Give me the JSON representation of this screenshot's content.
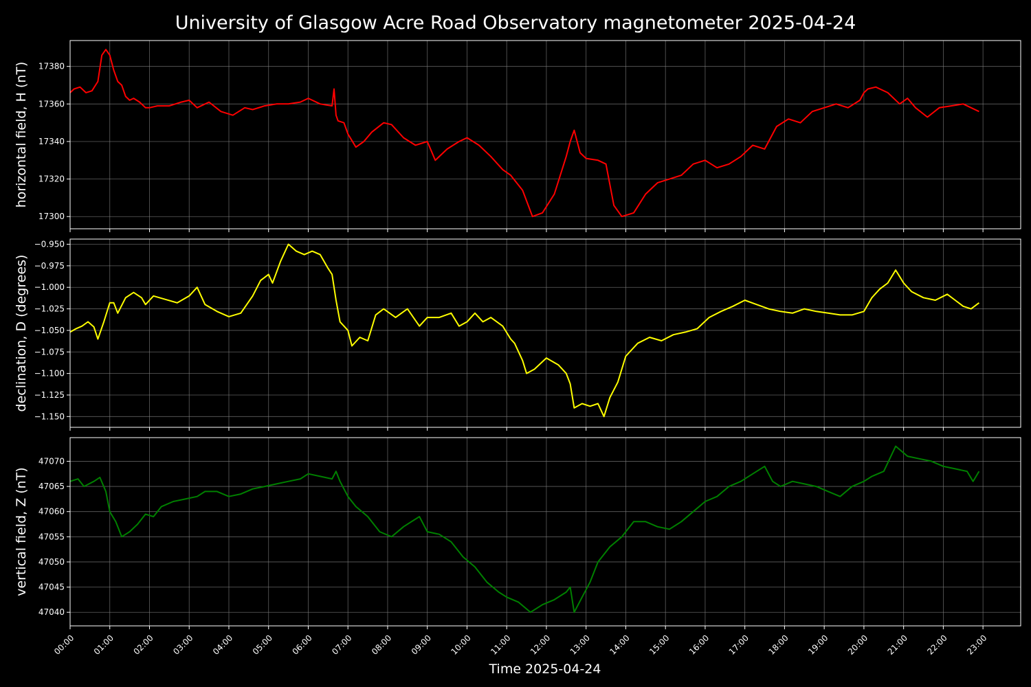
{
  "chart_data": {
    "type": "line",
    "title": "University of Glasgow Acre Road Observatory magnetometer 2025-04-24",
    "xlabel": "Time 2025-04-24",
    "x_tick_labels": [
      "00:00",
      "01:00",
      "02:00",
      "03:00",
      "04:00",
      "05:00",
      "06:00",
      "07:00",
      "08:00",
      "09:00",
      "10:00",
      "11:00",
      "12:00",
      "13:00",
      "14:00",
      "15:00",
      "16:00",
      "17:00",
      "18:00",
      "19:00",
      "20:00",
      "21:00",
      "22:00",
      "23:00"
    ],
    "x_unit": "hours",
    "xlim": [
      0,
      23.95
    ],
    "grid": true,
    "panels": [
      {
        "ylabel": "horizontal field, H (nT)",
        "color": "#ff0000",
        "ylim": [
          17293.5,
          17393.8
        ],
        "yticks": [
          17300,
          17320,
          17340,
          17360,
          17380
        ],
        "ytick_labels": [
          "17300",
          "17320",
          "17340",
          "17360",
          "17380"
        ],
        "x": [
          0,
          0.1,
          0.25,
          0.4,
          0.55,
          0.7,
          0.8,
          0.9,
          1.0,
          1.1,
          1.2,
          1.3,
          1.4,
          1.5,
          1.6,
          1.75,
          1.9,
          2.0,
          2.2,
          2.5,
          2.8,
          3.0,
          3.2,
          3.5,
          3.8,
          4.1,
          4.4,
          4.6,
          4.9,
          5.2,
          5.5,
          5.8,
          6.0,
          6.3,
          6.6,
          6.65,
          6.7,
          6.75,
          6.9,
          7.0,
          7.2,
          7.4,
          7.6,
          7.9,
          8.1,
          8.4,
          8.7,
          9.0,
          9.2,
          9.5,
          9.8,
          10.0,
          10.3,
          10.6,
          10.9,
          11.1,
          11.4,
          11.65,
          11.9,
          12.2,
          12.5,
          12.6,
          12.7,
          12.85,
          13.0,
          13.3,
          13.5,
          13.7,
          13.9,
          14.2,
          14.5,
          14.8,
          15.1,
          15.4,
          15.7,
          16.0,
          16.3,
          16.6,
          16.9,
          17.2,
          17.5,
          17.8,
          18.1,
          18.4,
          18.7,
          19.0,
          19.3,
          19.6,
          19.9,
          20.0,
          20.1,
          20.3,
          20.6,
          20.9,
          21.1,
          21.3,
          21.6,
          21.9,
          22.2,
          22.5,
          22.7,
          22.9
        ],
        "y": [
          17366,
          17368,
          17369,
          17366,
          17367,
          17372,
          17386,
          17389,
          17386,
          17378,
          17372,
          17370,
          17364,
          17362,
          17363,
          17361,
          17358,
          17358,
          17359,
          17359,
          17361,
          17362,
          17358,
          17361,
          17356,
          17354,
          17358,
          17357,
          17359,
          17360,
          17360,
          17361,
          17363,
          17360,
          17359,
          17368,
          17354,
          17351,
          17350,
          17344,
          17337,
          17340,
          17345,
          17350,
          17349,
          17342,
          17338,
          17340,
          17330,
          17336,
          17340,
          17342,
          17338,
          17332,
          17325,
          17322,
          17314,
          17300,
          17302,
          17312,
          17332,
          17340,
          17346,
          17334,
          17331,
          17330,
          17328,
          17306,
          17300,
          17302,
          17312,
          17318,
          17320,
          17322,
          17328,
          17330,
          17326,
          17328,
          17332,
          17338,
          17336,
          17348,
          17352,
          17350,
          17356,
          17358,
          17360,
          17358,
          17362,
          17366,
          17368,
          17369,
          17366,
          17360,
          17363,
          17358,
          17353,
          17358,
          17359,
          17360,
          17358,
          17356
        ]
      },
      {
        "ylabel": "declination, D (degrees)",
        "color": "#ffff00",
        "ylim": [
          -1.1625,
          -0.944
        ],
        "yticks": [
          -1.15,
          -1.125,
          -1.1,
          -1.075,
          -1.05,
          -1.025,
          -1.0,
          -0.975,
          -0.95
        ],
        "ytick_labels": [
          "−1.150",
          "−1.125",
          "−1.100",
          "−1.075",
          "−1.050",
          "−1.025",
          "−1.000",
          "−0.975",
          "−0.950"
        ],
        "x": [
          0,
          0.15,
          0.3,
          0.45,
          0.6,
          0.7,
          0.85,
          1.0,
          1.1,
          1.2,
          1.4,
          1.6,
          1.8,
          1.9,
          2.1,
          2.4,
          2.7,
          3.0,
          3.2,
          3.4,
          3.7,
          4.0,
          4.3,
          4.6,
          4.8,
          5.0,
          5.1,
          5.3,
          5.5,
          5.7,
          5.9,
          6.1,
          6.3,
          6.5,
          6.6,
          6.7,
          6.8,
          7.0,
          7.1,
          7.3,
          7.5,
          7.7,
          7.9,
          8.2,
          8.5,
          8.8,
          9.0,
          9.3,
          9.6,
          9.8,
          10.0,
          10.2,
          10.4,
          10.6,
          10.9,
          11.1,
          11.2,
          11.4,
          11.5,
          11.7,
          12.0,
          12.3,
          12.5,
          12.6,
          12.7,
          12.9,
          13.1,
          13.3,
          13.45,
          13.6,
          13.8,
          14.0,
          14.3,
          14.6,
          14.9,
          15.2,
          15.5,
          15.8,
          16.1,
          16.4,
          16.7,
          17.0,
          17.3,
          17.6,
          17.9,
          18.2,
          18.5,
          18.8,
          19.1,
          19.4,
          19.7,
          20.0,
          20.2,
          20.4,
          20.6,
          20.8,
          21.0,
          21.2,
          21.5,
          21.8,
          22.1,
          22.3,
          22.5,
          22.7,
          22.9
        ],
        "y": [
          -1.052,
          -1.048,
          -1.045,
          -1.04,
          -1.046,
          -1.06,
          -1.04,
          -1.018,
          -1.018,
          -1.03,
          -1.012,
          -1.006,
          -1.012,
          -1.02,
          -1.01,
          -1.014,
          -1.018,
          -1.01,
          -1.0,
          -1.02,
          -1.028,
          -1.034,
          -1.03,
          -1.01,
          -0.992,
          -0.985,
          -0.995,
          -0.97,
          -0.95,
          -0.958,
          -0.962,
          -0.958,
          -0.962,
          -0.978,
          -0.985,
          -1.015,
          -1.04,
          -1.05,
          -1.068,
          -1.058,
          -1.062,
          -1.032,
          -1.025,
          -1.035,
          -1.025,
          -1.045,
          -1.035,
          -1.035,
          -1.03,
          -1.045,
          -1.04,
          -1.03,
          -1.04,
          -1.035,
          -1.045,
          -1.06,
          -1.065,
          -1.085,
          -1.1,
          -1.095,
          -1.082,
          -1.09,
          -1.1,
          -1.112,
          -1.14,
          -1.135,
          -1.138,
          -1.135,
          -1.15,
          -1.128,
          -1.11,
          -1.08,
          -1.065,
          -1.058,
          -1.062,
          -1.055,
          -1.052,
          -1.048,
          -1.035,
          -1.028,
          -1.022,
          -1.015,
          -1.02,
          -1.025,
          -1.028,
          -1.03,
          -1.025,
          -1.028,
          -1.03,
          -1.032,
          -1.032,
          -1.028,
          -1.012,
          -1.002,
          -0.995,
          -0.98,
          -0.995,
          -1.005,
          -1.012,
          -1.015,
          -1.008,
          -1.015,
          -1.022,
          -1.025,
          -1.018
        ]
      },
      {
        "ylabel": "vertical field, Z (nT)",
        "color": "#008000",
        "ylim": [
          47037.3,
          47074.7
        ],
        "yticks": [
          47040,
          47045,
          47050,
          47055,
          47060,
          47065,
          47070
        ],
        "ytick_labels": [
          "47040",
          "47045",
          "47050",
          "47055",
          "47060",
          "47065",
          "47070"
        ],
        "x": [
          0,
          0.2,
          0.35,
          0.6,
          0.75,
          0.9,
          1.0,
          1.15,
          1.3,
          1.5,
          1.7,
          1.9,
          2.1,
          2.3,
          2.6,
          2.9,
          3.2,
          3.4,
          3.7,
          4.0,
          4.3,
          4.6,
          4.9,
          5.2,
          5.5,
          5.8,
          6.0,
          6.3,
          6.6,
          6.7,
          6.8,
          7.0,
          7.2,
          7.5,
          7.8,
          8.1,
          8.4,
          8.6,
          8.8,
          9.0,
          9.3,
          9.6,
          9.9,
          10.2,
          10.5,
          10.8,
          11.0,
          11.3,
          11.6,
          11.9,
          12.2,
          12.5,
          12.6,
          12.7,
          12.9,
          13.1,
          13.3,
          13.6,
          13.9,
          14.2,
          14.5,
          14.8,
          15.1,
          15.4,
          15.7,
          16.0,
          16.3,
          16.6,
          16.9,
          17.2,
          17.5,
          17.7,
          17.9,
          18.2,
          18.5,
          18.8,
          19.1,
          19.4,
          19.7,
          20.0,
          20.2,
          20.5,
          20.8,
          21.1,
          21.4,
          21.7,
          22.0,
          22.3,
          22.6,
          22.75,
          22.9
        ],
        "y": [
          47066,
          47066.5,
          47065,
          47066,
          47066.8,
          47064,
          47060,
          47058,
          47055,
          47056,
          47057.5,
          47059.5,
          47059,
          47061,
          47062,
          47062.5,
          47063,
          47064,
          47064,
          47063,
          47063.5,
          47064.5,
          47065,
          47065.5,
          47066,
          47066.5,
          47067.5,
          47067,
          47066.5,
          47068,
          47066,
          47063,
          47061,
          47059,
          47056,
          47055,
          47057,
          47058,
          47059,
          47056,
          47055.5,
          47054,
          47051,
          47049,
          47046,
          47044,
          47043,
          47042,
          47040,
          47041.5,
          47042.5,
          47044,
          47045,
          47040,
          47043,
          47046,
          47050,
          47053,
          47055,
          47058,
          47058,
          47057,
          47056.5,
          47058,
          47060,
          47062,
          47063,
          47065,
          47066,
          47067.5,
          47069,
          47066,
          47065,
          47066,
          47065.5,
          47065,
          47064,
          47063,
          47065,
          47066,
          47067,
          47068,
          47073,
          47071,
          47070.5,
          47070,
          47069,
          47068.5,
          47068,
          47066,
          47068
        ]
      }
    ]
  }
}
